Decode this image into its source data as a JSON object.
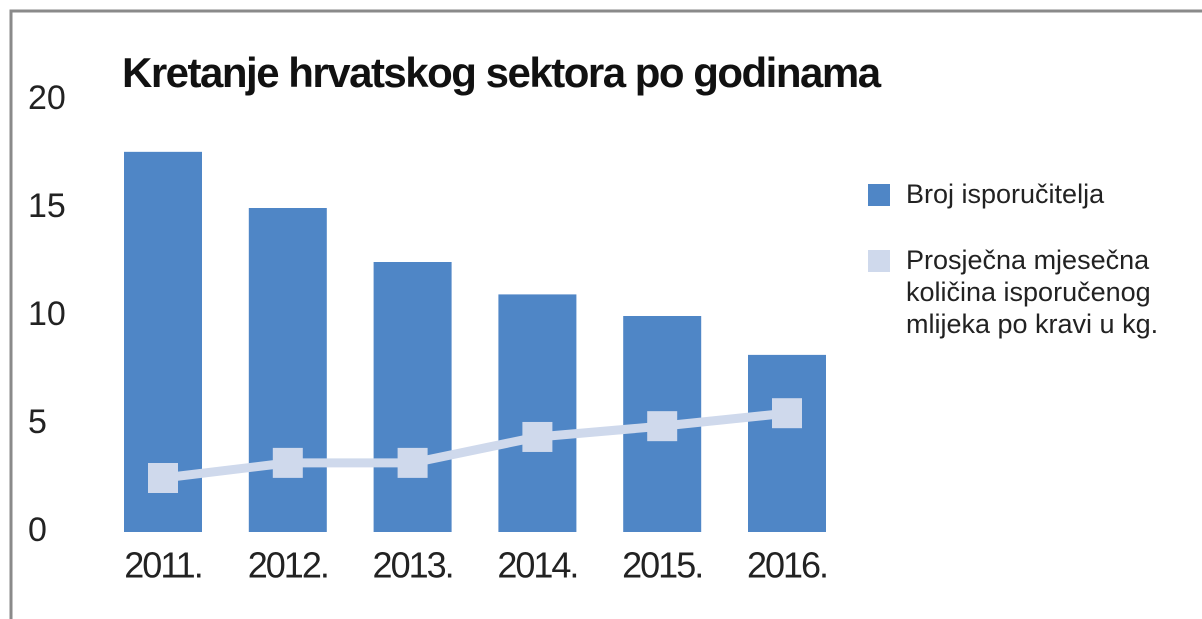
{
  "chart_data": {
    "type": "bar",
    "title": "Kretanje hrvatskog sektora po godinama",
    "categories": [
      "2011.",
      "2012.",
      "2013.",
      "2014.",
      "2015.",
      "2016."
    ],
    "series": [
      {
        "name": "Broj isporučitelja",
        "color": "#4f86c6",
        "values": [
          17.6,
          15.0,
          12.5,
          11.0,
          10.0,
          8.2
        ]
      },
      {
        "name": "Prosječna mjesečna količina isporučenog mlijeka po kravi u kg.",
        "color": "#cfd9ec",
        "type": "line",
        "values": [
          2.5,
          3.2,
          3.2,
          4.4,
          4.9,
          5.5
        ]
      }
    ],
    "ylim": [
      0,
      20
    ],
    "yticks": [
      0,
      5,
      10,
      15,
      20
    ],
    "grid": false,
    "legend": "right"
  }
}
